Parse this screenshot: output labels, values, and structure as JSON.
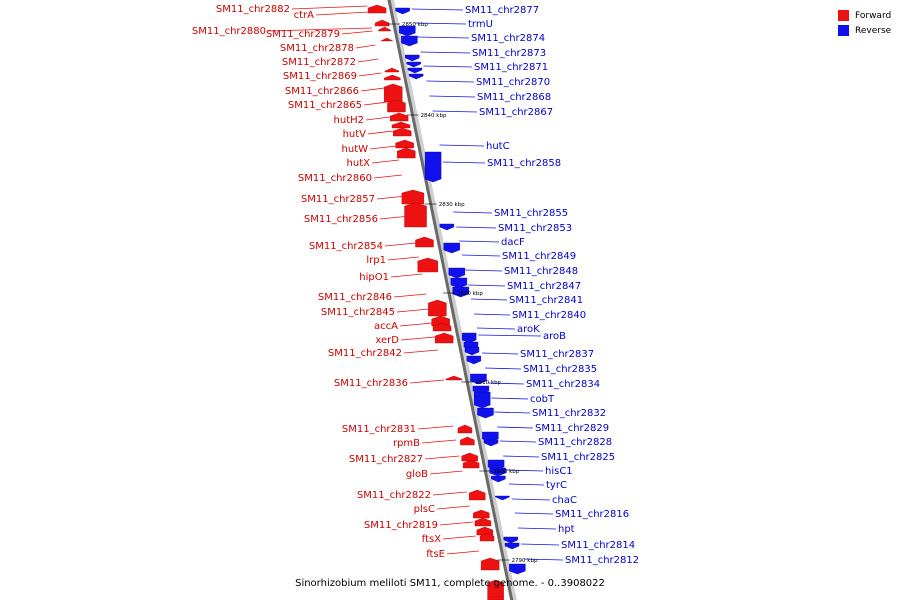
{
  "legend": {
    "forward_label": "Forward",
    "reverse_label": "Reverse",
    "forward_color": "#ee1111",
    "reverse_color": "#1111ee"
  },
  "caption": "Sinorhizobium meliloti SM11, complete genome. - 0..3908022",
  "ticks": [
    "2850 kbp",
    "2840 kbp",
    "2830 kbp",
    "2820 kbp",
    "2810 kbp",
    "2800 kbp",
    "2790 kbp"
  ],
  "forward_labels": [
    "ctrA",
    "SM11_chr2882",
    "SM11_chr2880",
    "SM11_chr2879",
    "SM11_chr2878",
    "SM11_chr2872",
    "SM11_chr2869",
    "SM11_chr2866",
    "SM11_chr2865",
    "hutH2",
    "hutV",
    "hutW",
    "hutX",
    "SM11_chr2860",
    "SM11_chr2857",
    "SM11_chr2856",
    "SM11_chr2854",
    "lrp1",
    "hipO1",
    "SM11_chr2846",
    "SM11_chr2845",
    "accA",
    "xerD",
    "SM11_chr2842",
    "SM11_chr2836",
    "SM11_chr2831",
    "rpmB",
    "SM11_chr2827",
    "gloB",
    "SM11_chr2822",
    "plsC",
    "SM11_chr2819",
    "ftsX",
    "ftsE"
  ],
  "reverse_labels": [
    "SM11_chr2877",
    "trmU",
    "SM11_chr2874",
    "SM11_chr2873",
    "SM11_chr2871",
    "SM11_chr2870",
    "SM11_chr2868",
    "SM11_chr2867",
    "hutC",
    "SM11_chr2858",
    "SM11_chr2855",
    "SM11_chr2853",
    "dacF",
    "SM11_chr2849",
    "SM11_chr2848",
    "SM11_chr2847",
    "SM11_chr2841",
    "SM11_chr2840",
    "aroK",
    "aroB",
    "SM11_chr2837",
    "SM11_chr2835",
    "SM11_chr2834",
    "cobT",
    "SM11_chr2832",
    "SM11_chr2829",
    "SM11_chr2828",
    "SM11_chr2825",
    "hisC1",
    "tyrC",
    "chaC",
    "SM11_chr2816",
    "hpt",
    "SM11_chr2814",
    "SM11_chr2812"
  ]
}
